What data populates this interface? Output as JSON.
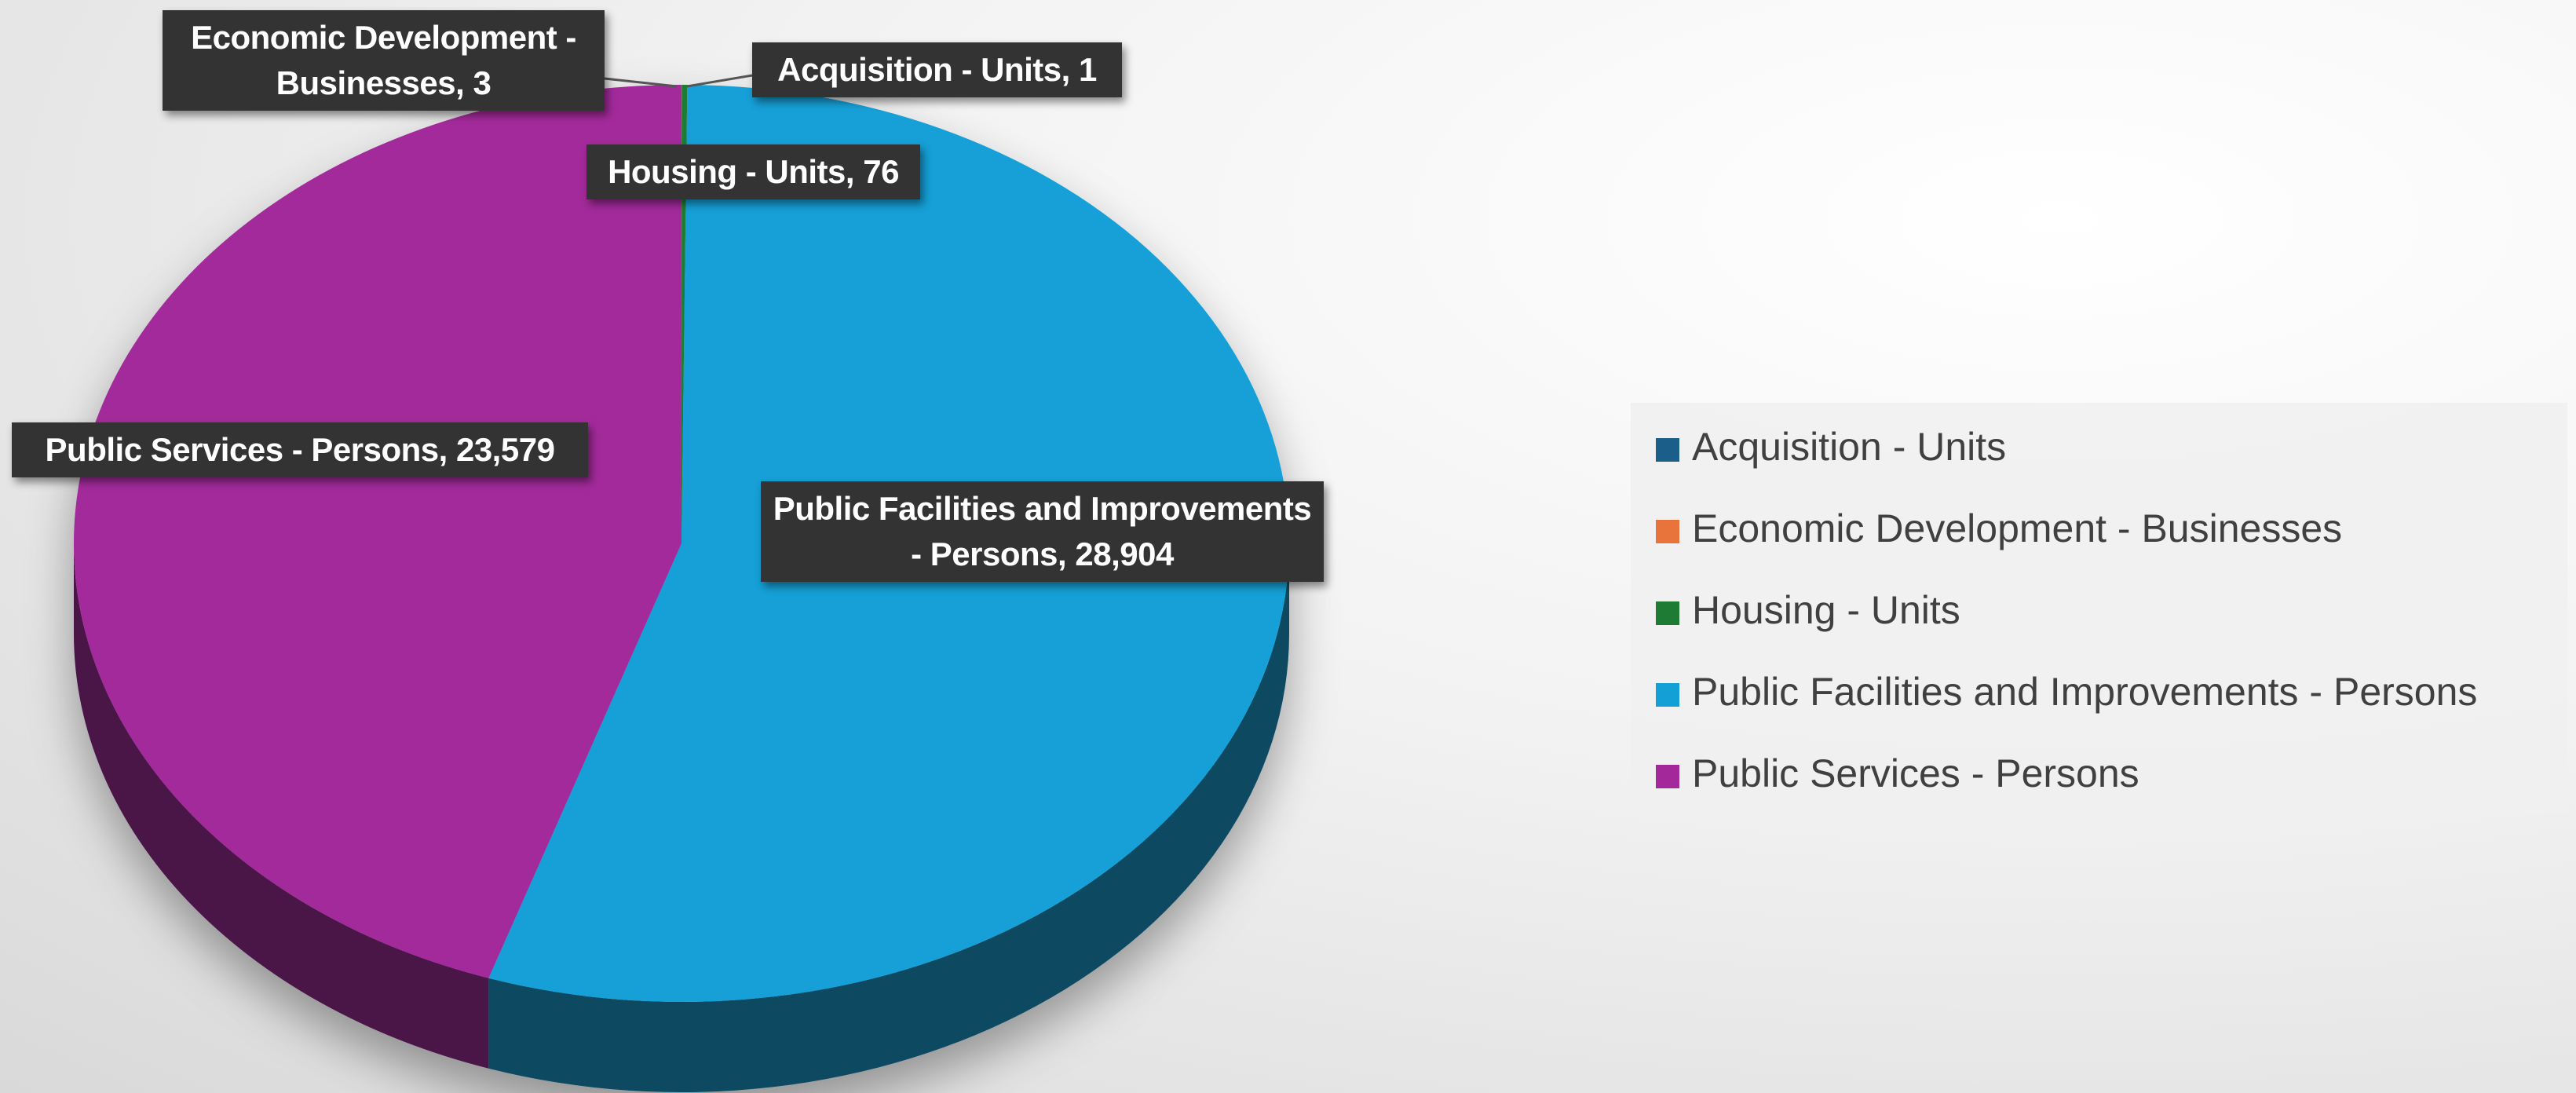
{
  "chart_data": {
    "type": "pie",
    "categories": [
      "Acquisition - Units",
      "Economic Development - Businesses",
      "Housing - Units",
      "Public Facilities and Improvements - Persons",
      "Public Services - Persons"
    ],
    "values": [
      1,
      3,
      76,
      28904,
      23579
    ],
    "value_labels": [
      "1",
      "3",
      "76",
      "28,904",
      "23,579"
    ],
    "colors": [
      "#1b5e8a",
      "#e8743b",
      "#1e7b34",
      "#12a0d7",
      "#a3299b"
    ],
    "legend": "right"
  }
}
